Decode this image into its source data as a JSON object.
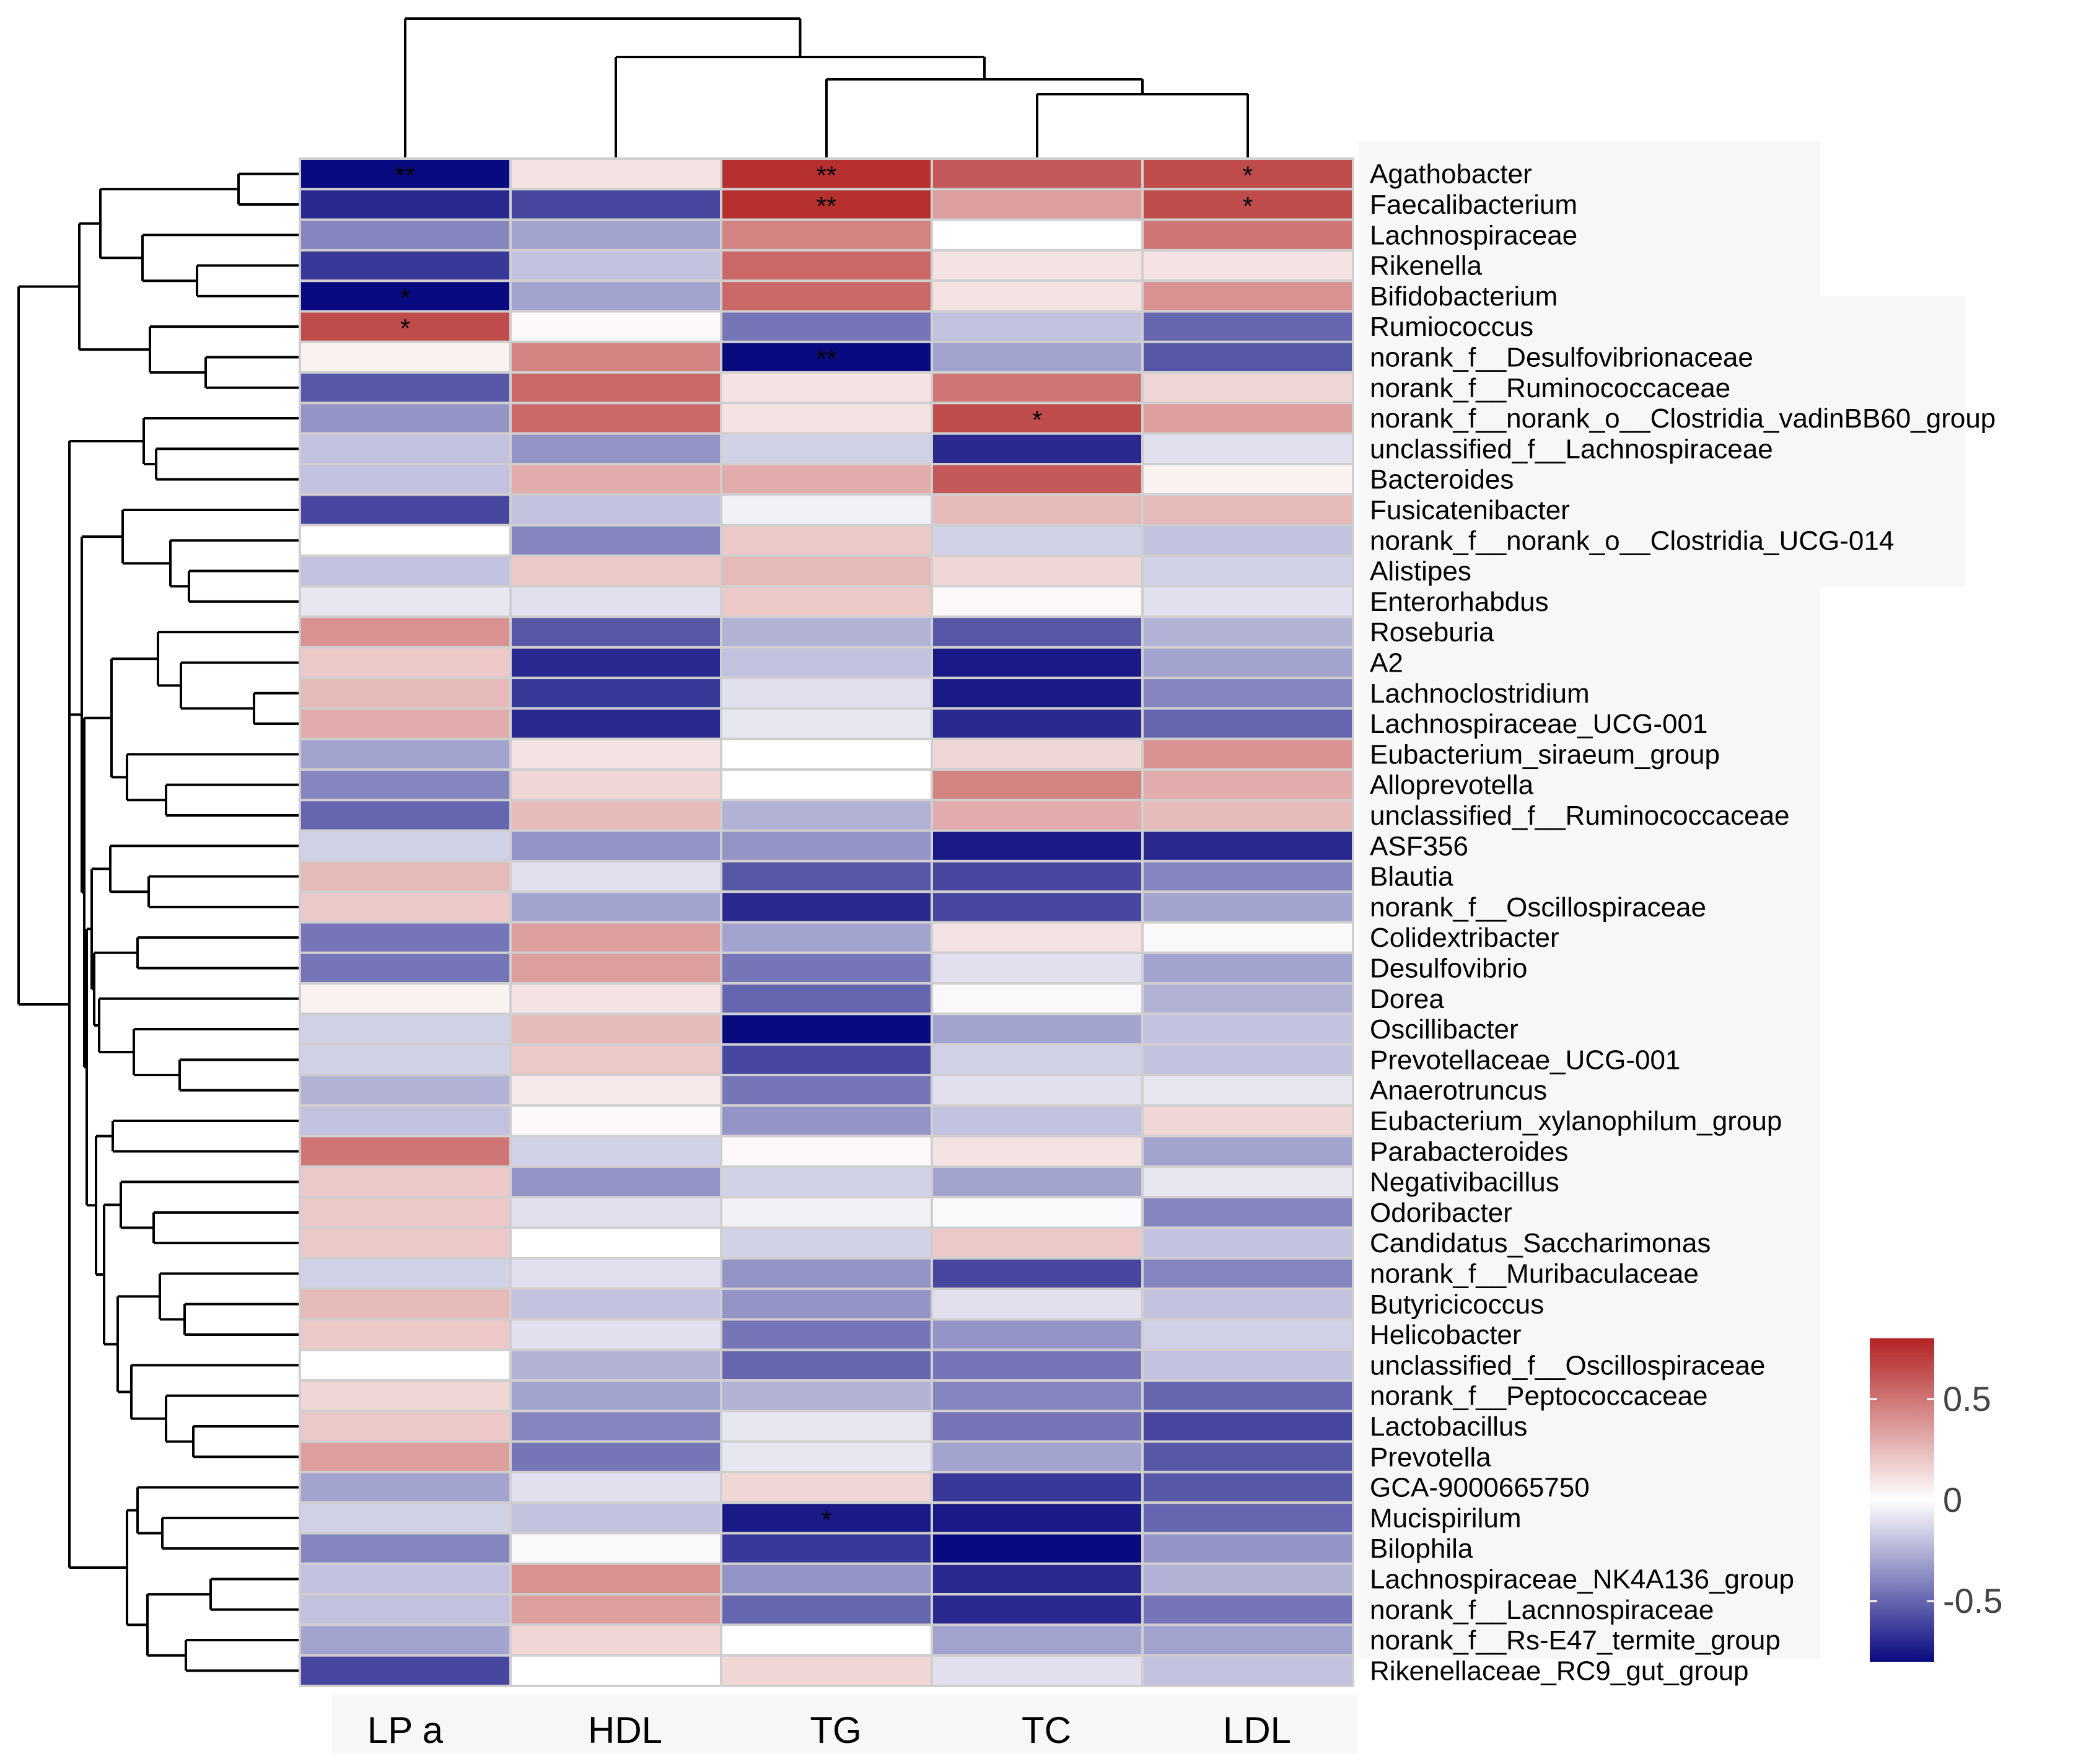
{
  "chart_data": {
    "type": "heatmap",
    "title": "",
    "columns": [
      "LP a",
      "HDL",
      "TG",
      "TC",
      "LDL"
    ],
    "rows": [
      "Agathobacter",
      "Faecalibacterium",
      "Lachnospiraceae",
      "Rikenella",
      "Bifidobacterium",
      "Rumiococcus",
      "norank_f__Desulfovibrionaceae",
      "norank_f__Ruminococcaceae",
      "norank_f__norank_o__Clostridia_vadinBB60_group",
      "unclassified_f__Lachnospiraceae",
      "Bacteroides",
      "Fusicatenibacter",
      "norank_f__norank_o__Clostridia_UCG-014",
      "Alistipes",
      "Enterorhabdus",
      "Roseburia",
      "A2",
      "Lachnoclostridium",
      "Lachnospiraceae_UCG-001",
      "Eubacterium_siraeum_group",
      "Alloprevotella",
      "unclassified_f__Ruminococcaceae",
      "ASF356",
      "Blautia",
      "norank_f__Oscillospiraceae",
      "Colidextribacter",
      "Desulfovibrio",
      "Dorea",
      "Oscillibacter",
      "Prevotellaceae_UCG-001",
      "Anaerotruncus",
      "Eubacterium_xylanophilum_group",
      "Parabacteroides",
      "Negativibacillus",
      "Odoribacter",
      "Candidatus_Saccharimonas",
      "norank_f__Muribaculaceae",
      "Butyricicoccus",
      "Helicobacter",
      "unclassified_f__Oscillospiraceae",
      "norank_f__Peptococcaceae",
      "Lactobacillus",
      "Prevotella",
      "GCA-9000665750",
      "Mucispirilum",
      "Bilophila",
      "Lachnospiraceae_NK4A136_group",
      "norank_f__Lacnnospiraceae",
      "norank_f__Rs-E47_termite_group",
      "Rikenellaceae_RC9_gut_group"
    ],
    "values": [
      [
        -0.8,
        0.1,
        0.75,
        0.6,
        0.65
      ],
      [
        -0.7,
        -0.6,
        0.75,
        0.35,
        0.65
      ],
      [
        -0.4,
        -0.3,
        0.45,
        0.0,
        0.5
      ],
      [
        -0.65,
        -0.2,
        0.55,
        0.1,
        0.1
      ],
      [
        -0.8,
        -0.3,
        0.55,
        0.1,
        0.4
      ],
      [
        0.65,
        0.02,
        -0.45,
        -0.2,
        -0.5
      ],
      [
        0.05,
        0.45,
        -0.8,
        -0.3,
        -0.55
      ],
      [
        -0.55,
        0.55,
        0.1,
        0.5,
        0.15
      ],
      [
        -0.35,
        0.55,
        0.1,
        0.65,
        0.35
      ],
      [
        -0.2,
        -0.35,
        -0.15,
        -0.7,
        -0.1
      ],
      [
        -0.2,
        0.3,
        0.3,
        0.6,
        0.05
      ],
      [
        -0.6,
        -0.2,
        -0.05,
        0.25,
        0.25
      ],
      [
        0.0,
        -0.4,
        0.2,
        -0.15,
        -0.2
      ],
      [
        -0.2,
        0.2,
        0.25,
        0.15,
        -0.15
      ],
      [
        -0.08,
        -0.1,
        0.2,
        0.02,
        -0.1
      ],
      [
        0.4,
        -0.55,
        -0.25,
        -0.55,
        -0.25
      ],
      [
        0.2,
        -0.7,
        -0.2,
        -0.75,
        -0.3
      ],
      [
        0.25,
        -0.65,
        -0.1,
        -0.75,
        -0.4
      ],
      [
        0.3,
        -0.7,
        -0.08,
        -0.7,
        -0.5
      ],
      [
        -0.3,
        0.1,
        0.0,
        0.15,
        0.4
      ],
      [
        -0.4,
        0.15,
        0.0,
        0.45,
        0.3
      ],
      [
        -0.5,
        0.25,
        -0.25,
        0.3,
        0.25
      ],
      [
        -0.15,
        -0.35,
        -0.35,
        -0.75,
        -0.7
      ],
      [
        0.25,
        -0.1,
        -0.55,
        -0.6,
        -0.4
      ],
      [
        0.2,
        -0.3,
        -0.7,
        -0.6,
        -0.3
      ],
      [
        -0.45,
        0.35,
        -0.3,
        0.1,
        -0.02
      ],
      [
        -0.45,
        0.35,
        -0.45,
        -0.1,
        -0.3
      ],
      [
        0.05,
        0.1,
        -0.5,
        -0.02,
        -0.25
      ],
      [
        -0.15,
        0.25,
        -0.8,
        -0.3,
        -0.2
      ],
      [
        -0.15,
        0.2,
        -0.6,
        -0.15,
        -0.2
      ],
      [
        -0.25,
        0.08,
        -0.45,
        -0.1,
        -0.08
      ],
      [
        -0.2,
        0.02,
        -0.35,
        -0.2,
        0.15
      ],
      [
        0.5,
        -0.15,
        0.02,
        0.1,
        -0.3
      ],
      [
        0.2,
        -0.35,
        -0.15,
        -0.3,
        -0.08
      ],
      [
        0.2,
        -0.1,
        -0.05,
        -0.02,
        -0.4
      ],
      [
        0.2,
        0.0,
        -0.15,
        0.2,
        -0.2
      ],
      [
        -0.15,
        -0.1,
        -0.35,
        -0.6,
        -0.4
      ],
      [
        0.25,
        -0.2,
        -0.35,
        -0.1,
        -0.2
      ],
      [
        0.2,
        -0.1,
        -0.45,
        -0.35,
        -0.15
      ],
      [
        0.0,
        -0.25,
        -0.5,
        -0.45,
        -0.2
      ],
      [
        0.15,
        -0.3,
        -0.25,
        -0.4,
        -0.5
      ],
      [
        0.2,
        -0.4,
        -0.08,
        -0.45,
        -0.6
      ],
      [
        0.35,
        -0.45,
        -0.08,
        -0.3,
        -0.55
      ],
      [
        -0.3,
        -0.1,
        0.15,
        -0.65,
        -0.55
      ],
      [
        -0.15,
        -0.2,
        -0.75,
        -0.75,
        -0.5
      ],
      [
        -0.4,
        -0.02,
        -0.65,
        -0.8,
        -0.35
      ],
      [
        -0.2,
        0.4,
        -0.35,
        -0.7,
        -0.25
      ],
      [
        -0.2,
        0.35,
        -0.5,
        -0.7,
        -0.45
      ],
      [
        -0.3,
        0.15,
        0.0,
        -0.3,
        -0.3
      ],
      [
        -0.6,
        0.0,
        0.15,
        -0.1,
        -0.2
      ]
    ],
    "significance": [
      [
        "**",
        "",
        "**",
        "",
        "*"
      ],
      [
        "",
        "",
        "**",
        "",
        "*"
      ],
      [
        "",
        "",
        "",
        "",
        ""
      ],
      [
        "",
        "",
        "",
        "",
        ""
      ],
      [
        "*",
        "",
        "",
        "",
        ""
      ],
      [
        "*",
        "",
        "",
        "",
        ""
      ],
      [
        "",
        "",
        "**",
        "",
        ""
      ],
      [
        "",
        "",
        "",
        "",
        ""
      ],
      [
        "",
        "",
        "",
        "*",
        ""
      ],
      [
        "",
        "",
        "",
        "",
        ""
      ],
      [
        "",
        "",
        "",
        "",
        ""
      ],
      [
        "",
        "",
        "",
        "",
        ""
      ],
      [
        "",
        "",
        "",
        "",
        ""
      ],
      [
        "",
        "",
        "",
        "",
        ""
      ],
      [
        "",
        "",
        "",
        "",
        ""
      ],
      [
        "",
        "",
        "",
        "",
        ""
      ],
      [
        "",
        "",
        "",
        "",
        ""
      ],
      [
        "",
        "",
        "",
        "",
        ""
      ],
      [
        "",
        "",
        "",
        "",
        ""
      ],
      [
        "",
        "",
        "",
        "",
        ""
      ],
      [
        "",
        "",
        "",
        "",
        ""
      ],
      [
        "",
        "",
        "",
        "",
        ""
      ],
      [
        "",
        "",
        "",
        "",
        ""
      ],
      [
        "",
        "",
        "",
        "",
        ""
      ],
      [
        "",
        "",
        "",
        "",
        ""
      ],
      [
        "",
        "",
        "",
        "",
        ""
      ],
      [
        "",
        "",
        "",
        "",
        ""
      ],
      [
        "",
        "",
        "",
        "",
        ""
      ],
      [
        "",
        "",
        "",
        "",
        ""
      ],
      [
        "",
        "",
        "",
        "",
        ""
      ],
      [
        "",
        "",
        "",
        "",
        ""
      ],
      [
        "",
        "",
        "",
        "",
        ""
      ],
      [
        "",
        "",
        "",
        "",
        ""
      ],
      [
        "",
        "",
        "",
        "",
        ""
      ],
      [
        "",
        "",
        "",
        "",
        ""
      ],
      [
        "",
        "",
        "",
        "",
        ""
      ],
      [
        "",
        "",
        "",
        "",
        ""
      ],
      [
        "",
        "",
        "",
        "",
        ""
      ],
      [
        "",
        "",
        "",
        "",
        ""
      ],
      [
        "",
        "",
        "",
        "",
        ""
      ],
      [
        "",
        "",
        "",
        "",
        ""
      ],
      [
        "",
        "",
        "",
        "",
        ""
      ],
      [
        "",
        "",
        "",
        "",
        ""
      ],
      [
        "",
        "",
        "",
        "",
        ""
      ],
      [
        "",
        "",
        "*",
        "",
        ""
      ],
      [
        "",
        "",
        "",
        "",
        ""
      ],
      [
        "",
        "",
        "",
        "",
        ""
      ],
      [
        "",
        "",
        "",
        "",
        ""
      ],
      [
        "",
        "",
        "",
        "",
        ""
      ],
      [
        "",
        "",
        "",
        "",
        ""
      ]
    ],
    "colorscale": {
      "min": -0.8,
      "max": 0.8,
      "low_color": "#0a0a80",
      "mid_color": "#ffffff",
      "high_color": "#b22222",
      "ticks": [
        0.5,
        0,
        -0.5
      ],
      "tick_labels": [
        "0.5",
        "0",
        "-0.5"
      ]
    },
    "legend_position": "right"
  }
}
